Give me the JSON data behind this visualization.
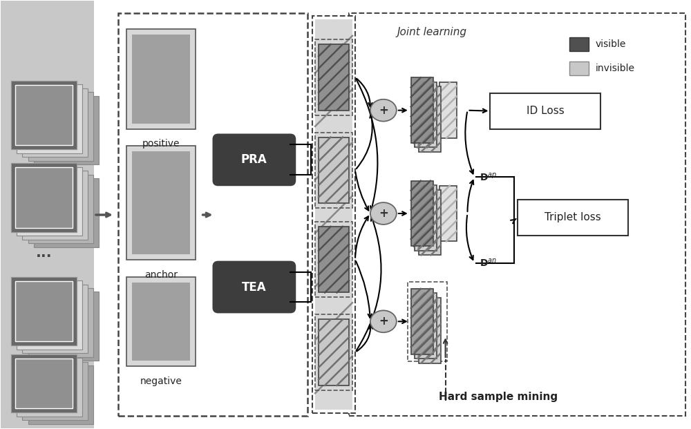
{
  "fig_width": 10.0,
  "fig_height": 6.21,
  "bg_color": "#f0f0f0",
  "white_bg": "#ffffff",
  "pra_label": "PRA",
  "tea_label": "TEA",
  "id_loss_label": "ID Loss",
  "triplet_loss_label": "Triplet loss",
  "joint_learning_label": "Joint learning",
  "hard_sample_mining_label": "Hard sample mining",
  "positive_label": "positive",
  "anchor_label": "anchor",
  "negative_label": "negative",
  "visible_label": "visible",
  "invisible_label": "invisible",
  "dark_box_color": "#3d3d3d",
  "stripe_dark": "#505050",
  "stripe_light": "#b0b0b0",
  "stripe_light2": "#d0d0d0",
  "ellipse_color": "#c8c8c8",
  "left_bg_color": "#c8c8c8"
}
